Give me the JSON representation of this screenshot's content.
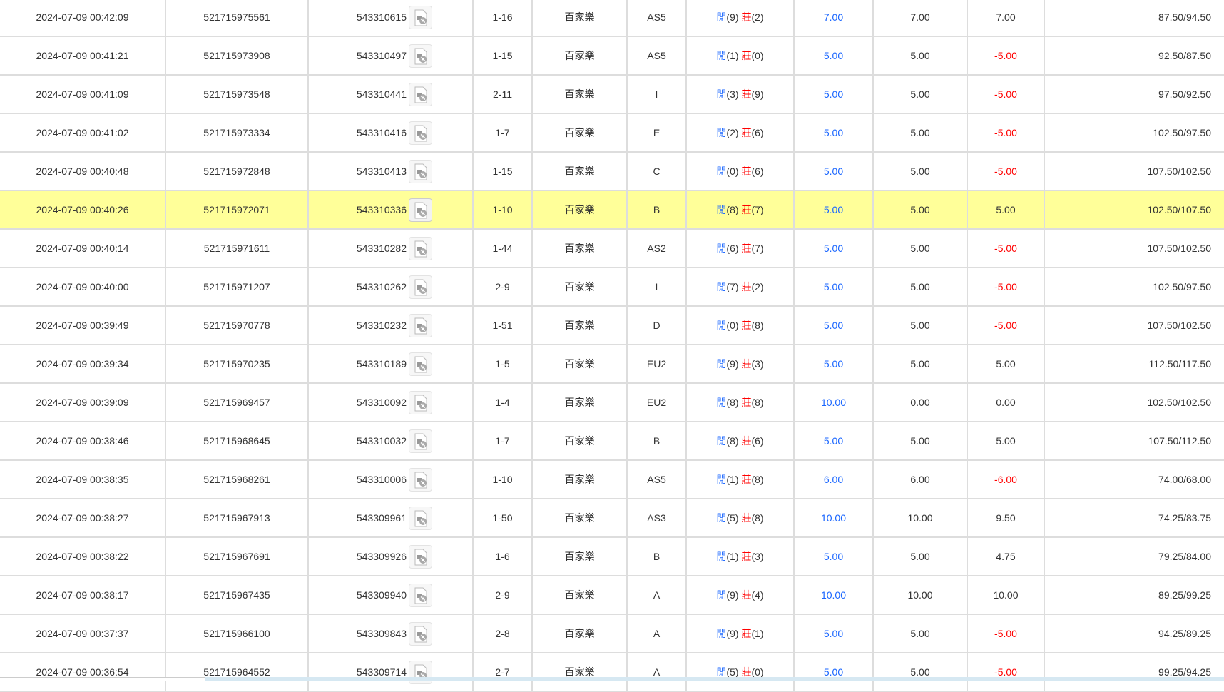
{
  "colors": {
    "player": "#1a66ff",
    "banker": "#ff0000",
    "highlight": "#ffff99",
    "bet": "#1a66ff",
    "negative": "#ff0000"
  },
  "labels": {
    "player": "閒",
    "banker": "莊"
  },
  "highlighted_row": 5,
  "rows": [
    {
      "time": "2024-07-09 00:42:09",
      "bet_id": "521715975561",
      "game_id": "543310615",
      "shoe": "1-16",
      "game": "百家樂",
      "table": "AS5",
      "player": "(9)",
      "banker": "(2)",
      "bet": "7.00",
      "valid": "7.00",
      "win": "7.00",
      "balance": "87.50/94.50"
    },
    {
      "time": "2024-07-09 00:41:21",
      "bet_id": "521715973908",
      "game_id": "543310497",
      "shoe": "1-15",
      "game": "百家樂",
      "table": "AS5",
      "player": "(1)",
      "banker": "(0)",
      "bet": "5.00",
      "valid": "5.00",
      "win": "-5.00",
      "balance": "92.50/87.50"
    },
    {
      "time": "2024-07-09 00:41:09",
      "bet_id": "521715973548",
      "game_id": "543310441",
      "shoe": "2-11",
      "game": "百家樂",
      "table": "I",
      "player": "(3)",
      "banker": "(9)",
      "bet": "5.00",
      "valid": "5.00",
      "win": "-5.00",
      "balance": "97.50/92.50"
    },
    {
      "time": "2024-07-09 00:41:02",
      "bet_id": "521715973334",
      "game_id": "543310416",
      "shoe": "1-7",
      "game": "百家樂",
      "table": "E",
      "player": "(2)",
      "banker": "(6)",
      "bet": "5.00",
      "valid": "5.00",
      "win": "-5.00",
      "balance": "102.50/97.50"
    },
    {
      "time": "2024-07-09 00:40:48",
      "bet_id": "521715972848",
      "game_id": "543310413",
      "shoe": "1-15",
      "game": "百家樂",
      "table": "C",
      "player": "(0)",
      "banker": "(6)",
      "bet": "5.00",
      "valid": "5.00",
      "win": "-5.00",
      "balance": "107.50/102.50"
    },
    {
      "time": "2024-07-09 00:40:26",
      "bet_id": "521715972071",
      "game_id": "543310336",
      "shoe": "1-10",
      "game": "百家樂",
      "table": "B",
      "player": "(8)",
      "banker": "(7)",
      "bet": "5.00",
      "valid": "5.00",
      "win": "5.00",
      "balance": "102.50/107.50"
    },
    {
      "time": "2024-07-09 00:40:14",
      "bet_id": "521715971611",
      "game_id": "543310282",
      "shoe": "1-44",
      "game": "百家樂",
      "table": "AS2",
      "player": "(6)",
      "banker": "(7)",
      "bet": "5.00",
      "valid": "5.00",
      "win": "-5.00",
      "balance": "107.50/102.50"
    },
    {
      "time": "2024-07-09 00:40:00",
      "bet_id": "521715971207",
      "game_id": "543310262",
      "shoe": "2-9",
      "game": "百家樂",
      "table": "I",
      "player": "(7)",
      "banker": "(2)",
      "bet": "5.00",
      "valid": "5.00",
      "win": "-5.00",
      "balance": "102.50/97.50"
    },
    {
      "time": "2024-07-09 00:39:49",
      "bet_id": "521715970778",
      "game_id": "543310232",
      "shoe": "1-51",
      "game": "百家樂",
      "table": "D",
      "player": "(0)",
      "banker": "(8)",
      "bet": "5.00",
      "valid": "5.00",
      "win": "-5.00",
      "balance": "107.50/102.50"
    },
    {
      "time": "2024-07-09 00:39:34",
      "bet_id": "521715970235",
      "game_id": "543310189",
      "shoe": "1-5",
      "game": "百家樂",
      "table": "EU2",
      "player": "(9)",
      "banker": "(3)",
      "bet": "5.00",
      "valid": "5.00",
      "win": "5.00",
      "balance": "112.50/117.50"
    },
    {
      "time": "2024-07-09 00:39:09",
      "bet_id": "521715969457",
      "game_id": "543310092",
      "shoe": "1-4",
      "game": "百家樂",
      "table": "EU2",
      "player": "(8)",
      "banker": "(8)",
      "bet": "10.00",
      "valid": "0.00",
      "win": "0.00",
      "balance": "102.50/102.50"
    },
    {
      "time": "2024-07-09 00:38:46",
      "bet_id": "521715968645",
      "game_id": "543310032",
      "shoe": "1-7",
      "game": "百家樂",
      "table": "B",
      "player": "(8)",
      "banker": "(6)",
      "bet": "5.00",
      "valid": "5.00",
      "win": "5.00",
      "balance": "107.50/112.50"
    },
    {
      "time": "2024-07-09 00:38:35",
      "bet_id": "521715968261",
      "game_id": "543310006",
      "shoe": "1-10",
      "game": "百家樂",
      "table": "AS5",
      "player": "(1)",
      "banker": "(8)",
      "bet": "6.00",
      "valid": "6.00",
      "win": "-6.00",
      "balance": "74.00/68.00"
    },
    {
      "time": "2024-07-09 00:38:27",
      "bet_id": "521715967913",
      "game_id": "543309961",
      "shoe": "1-50",
      "game": "百家樂",
      "table": "AS3",
      "player": "(5)",
      "banker": "(8)",
      "bet": "10.00",
      "valid": "10.00",
      "win": "9.50",
      "balance": "74.25/83.75"
    },
    {
      "time": "2024-07-09 00:38:22",
      "bet_id": "521715967691",
      "game_id": "543309926",
      "shoe": "1-6",
      "game": "百家樂",
      "table": "B",
      "player": "(1)",
      "banker": "(3)",
      "bet": "5.00",
      "valid": "5.00",
      "win": "4.75",
      "balance": "79.25/84.00"
    },
    {
      "time": "2024-07-09 00:38:17",
      "bet_id": "521715967435",
      "game_id": "543309940",
      "shoe": "2-9",
      "game": "百家樂",
      "table": "A",
      "player": "(9)",
      "banker": "(4)",
      "bet": "10.00",
      "valid": "10.00",
      "win": "10.00",
      "balance": "89.25/99.25"
    },
    {
      "time": "2024-07-09 00:37:37",
      "bet_id": "521715966100",
      "game_id": "543309843",
      "shoe": "2-8",
      "game": "百家樂",
      "table": "A",
      "player": "(9)",
      "banker": "(1)",
      "bet": "5.00",
      "valid": "5.00",
      "win": "-5.00",
      "balance": "94.25/89.25"
    },
    {
      "time": "2024-07-09 00:36:54",
      "bet_id": "521715964552",
      "game_id": "543309714",
      "shoe": "2-7",
      "game": "百家樂",
      "table": "A",
      "player": "(5)",
      "banker": "(0)",
      "bet": "5.00",
      "valid": "5.00",
      "win": "-5.00",
      "balance": "99.25/94.25"
    }
  ]
}
